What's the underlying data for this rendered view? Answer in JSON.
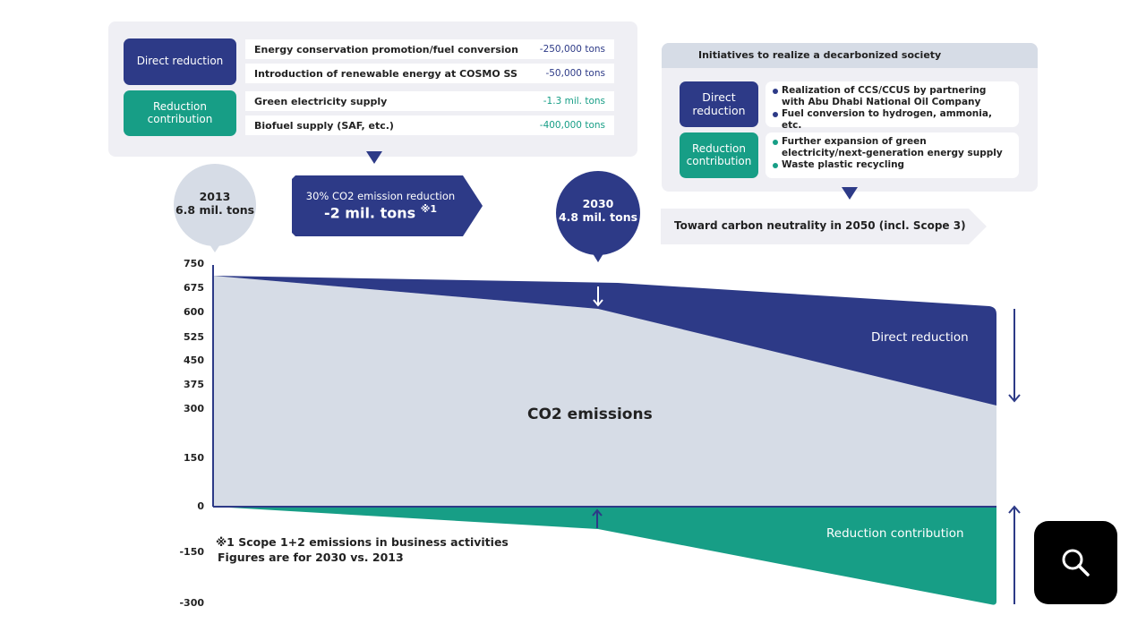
{
  "left_panel": {
    "direct_label": "Direct reduction",
    "contribution_label": "Reduction contribution",
    "rows": [
      {
        "label": "Energy conservation promotion/fuel conversion",
        "value": "-250,000 tons",
        "type": "direct"
      },
      {
        "label": "Introduction of renewable energy at COSMO SS",
        "value": "-50,000 tons",
        "type": "direct"
      },
      {
        "label": "Green electricity supply",
        "value": "-1.3 mil. tons",
        "type": "contribution"
      },
      {
        "label": "Biofuel supply (SAF, etc.)",
        "value": "-400,000 tons",
        "type": "contribution"
      }
    ]
  },
  "bubble_2013": {
    "year": "2013",
    "value": "6.8 mil. tons"
  },
  "reduction_arrow": {
    "line1": "30% CO2 emission reduction",
    "line2": "-2 mil. tons",
    "note": "※1"
  },
  "bubble_2030": {
    "year": "2030",
    "value": "4.8 mil. tons"
  },
  "right_panel": {
    "title": "Initiatives to realize a decarbonized society",
    "direct_label": "Direct reduction",
    "contribution_label": "Reduction contribution",
    "direct_items": [
      "Realization of CCS/CCUS by partnering with Abu Dhabi National Oil Company",
      "Fuel conversion to hydrogen, ammonia, etc."
    ],
    "contribution_items": [
      "Further expansion of green electricity/next-generation energy supply",
      "Waste plastic recycling"
    ]
  },
  "goal": "Toward carbon neutrality in 2050 (incl. Scope 3)",
  "chart": {
    "y_ticks": [
      "750",
      "675",
      "600",
      "525",
      "450",
      "375",
      "300",
      "150",
      "0",
      "-150",
      "-300"
    ],
    "area_label": "CO2 emissions",
    "direct_label": "Direct reduction",
    "contribution_label": "Reduction contribution",
    "footnote_1": "※1 Scope 1+2 emissions in business activities",
    "footnote_2": "Figures are for 2030 vs. 2013"
  },
  "colors": {
    "navy": "#2d3a87",
    "green": "#179e86",
    "gray": "#d6dce6"
  },
  "search_button": {
    "icon": "search-icon"
  }
}
